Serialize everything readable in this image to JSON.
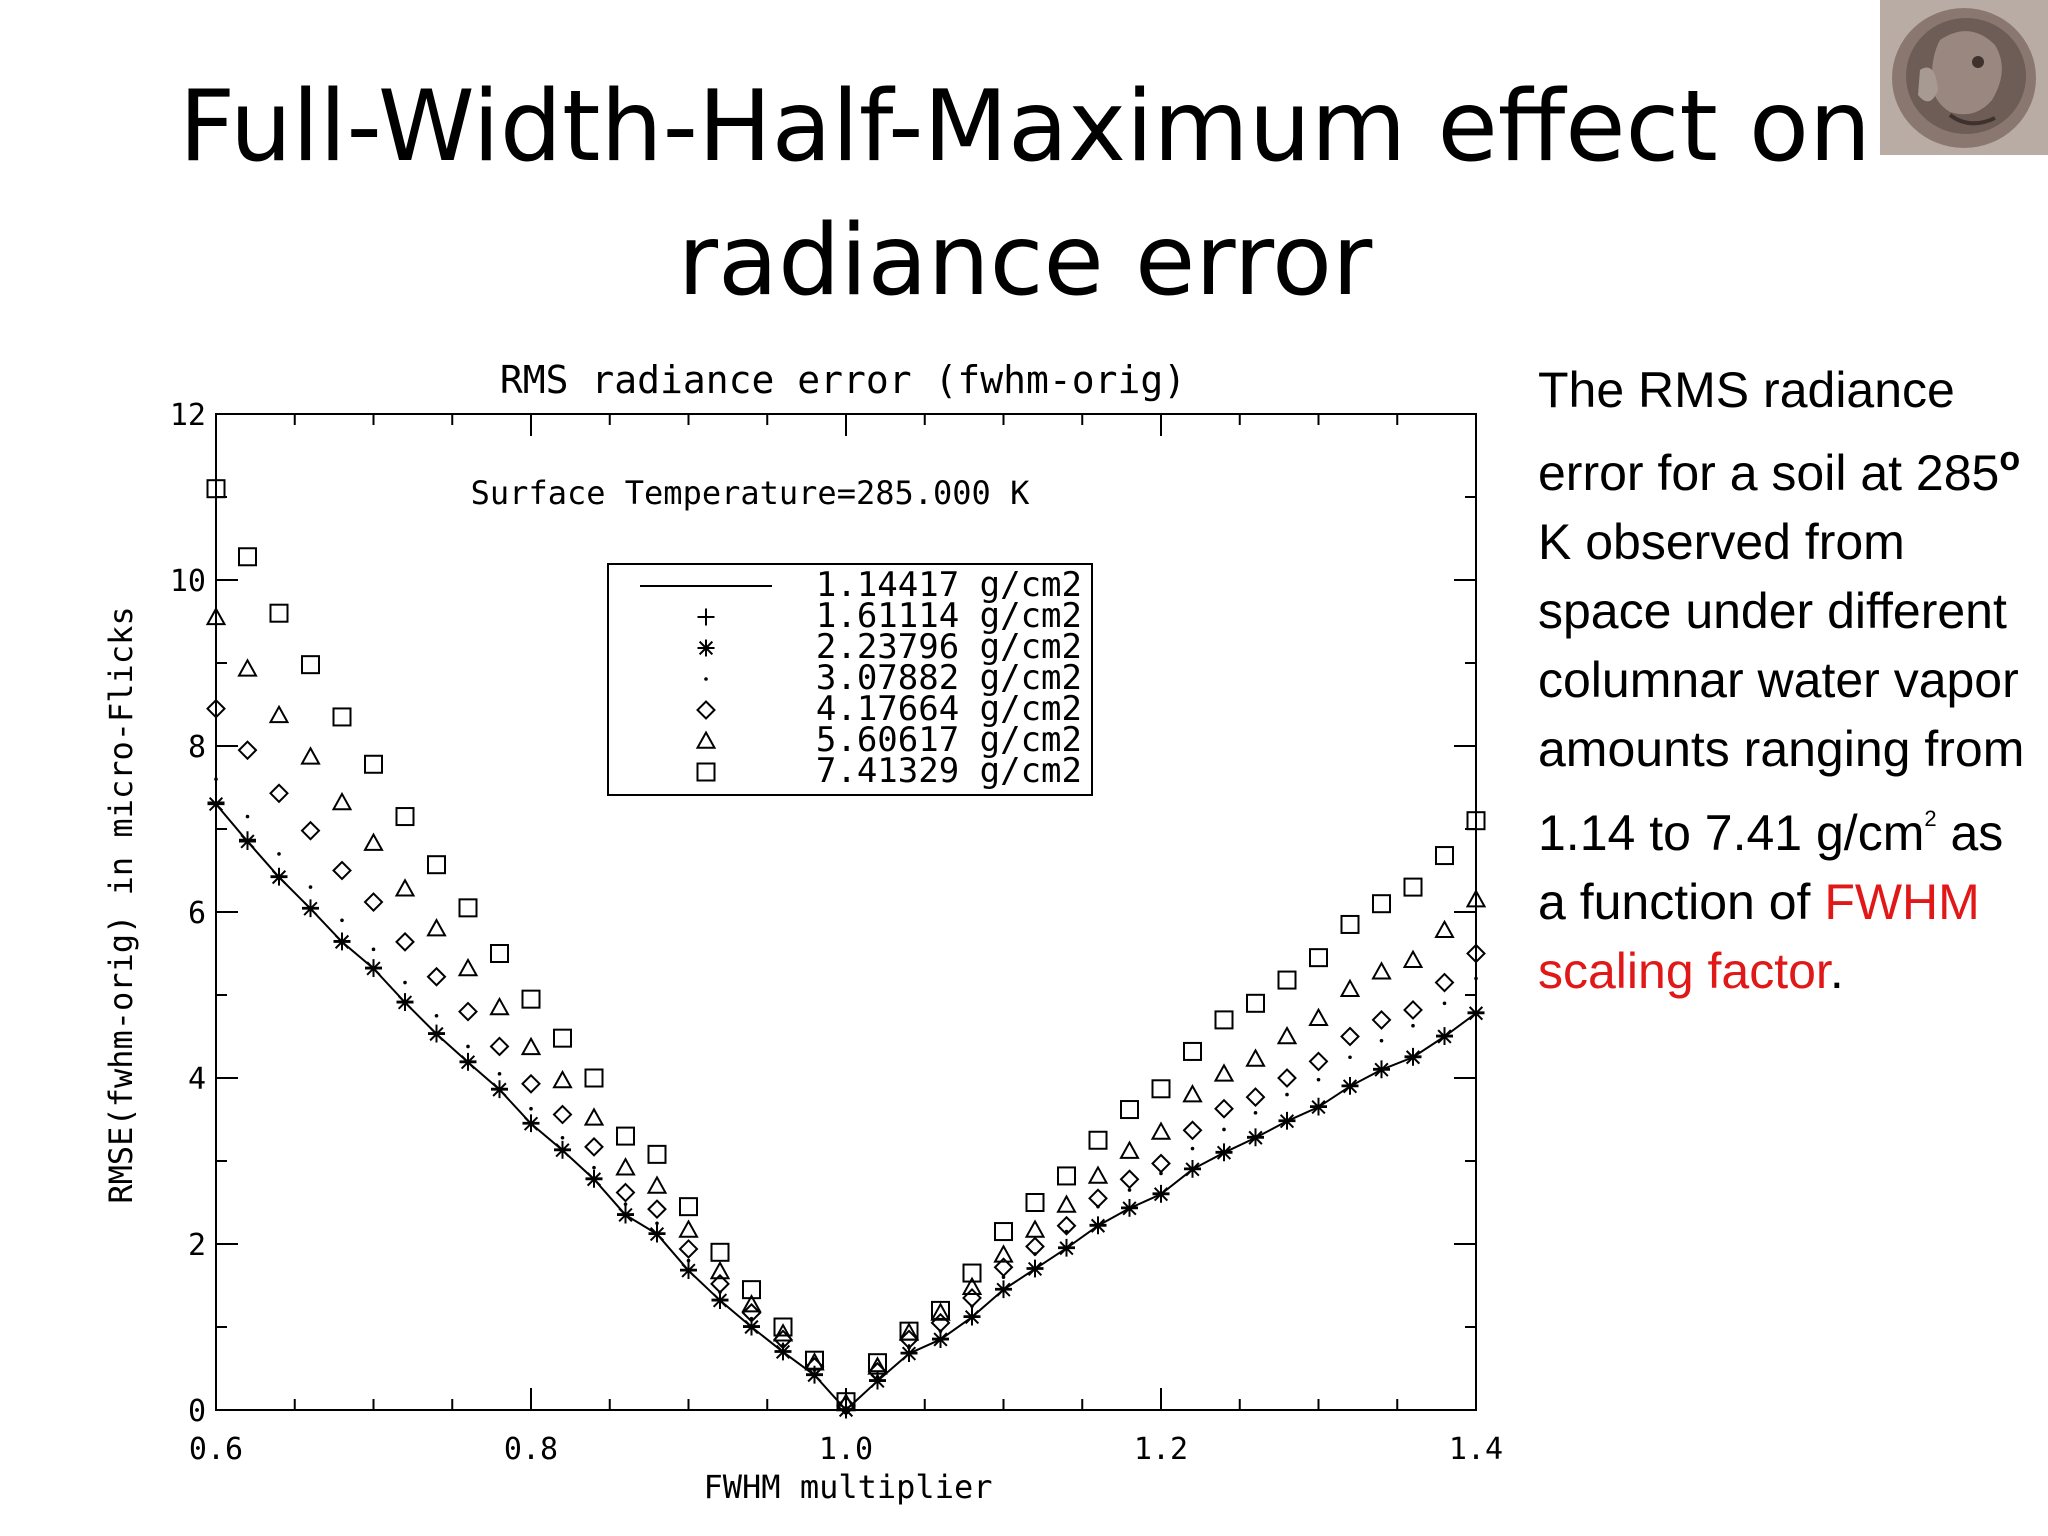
{
  "slide": {
    "title_line1": "Full-Width-Half-Maximum effect on",
    "title_line2": "radiance error"
  },
  "sidebar": {
    "p1": "The RMS radiance error for a soil at 285",
    "sup_o": "o",
    "p2": " K observed from space under different columnar water vapor amounts ranging from 1.14 to 7.41 g/cm",
    "sup_2": "2",
    "p3": " as a function of ",
    "highlight": "FWHM scaling factor",
    "p4": ".",
    "highlight_color": "#e01818"
  },
  "coin_image": {
    "icon": "ancient-coin-image"
  },
  "chart_data": {
    "type": "scatter",
    "title": "RMS radiance error (fwhm-orig)",
    "annotation": "Surface Temperature=285.000 K",
    "xlabel": "FWHM multiplier",
    "ylabel": "RMSE(fwhm-orig) in micro-Flicks",
    "xlim": [
      0.6,
      1.4
    ],
    "ylim": [
      0,
      12
    ],
    "x_ticks": [
      "0.6",
      "0.8",
      "1.0",
      "1.2",
      "1.4"
    ],
    "x_tick_values": [
      0.6,
      0.8,
      1.0,
      1.2,
      1.4
    ],
    "y_ticks": [
      "0",
      "2",
      "4",
      "6",
      "8",
      "10",
      "12"
    ],
    "y_tick_values": [
      0,
      2,
      4,
      6,
      8,
      10,
      12
    ],
    "grid": false,
    "legend_position": "top-center",
    "x": [
      0.6,
      0.62,
      0.64,
      0.66,
      0.68,
      0.7,
      0.72,
      0.74,
      0.76,
      0.78,
      0.8,
      0.82,
      0.84,
      0.86,
      0.88,
      0.9,
      0.92,
      0.94,
      0.96,
      0.98,
      1.0,
      1.02,
      1.04,
      1.06,
      1.08,
      1.1,
      1.12,
      1.14,
      1.16,
      1.18,
      1.2,
      1.22,
      1.24,
      1.26,
      1.28,
      1.3,
      1.32,
      1.34,
      1.36,
      1.38,
      1.4
    ],
    "series": [
      {
        "name": "1.14417 g/cm2",
        "marker": "line",
        "values": [
          7.3,
          6.85,
          6.42,
          6.04,
          5.64,
          5.32,
          4.91,
          4.53,
          4.19,
          3.86,
          3.45,
          3.13,
          2.78,
          2.35,
          2.12,
          1.68,
          1.32,
          1.0,
          0.7,
          0.42,
          0.0,
          0.35,
          0.68,
          0.85,
          1.12,
          1.45,
          1.7,
          1.95,
          2.22,
          2.43,
          2.6,
          2.9,
          3.1,
          3.28,
          3.48,
          3.65,
          3.9,
          4.1,
          4.25,
          4.5,
          4.78
        ]
      },
      {
        "name": "1.61114 g/cm2",
        "marker": "plus",
        "values": [
          7.32,
          6.87,
          6.43,
          6.05,
          5.65,
          5.33,
          4.92,
          4.54,
          4.2,
          3.87,
          3.46,
          3.14,
          2.79,
          2.36,
          2.13,
          1.69,
          1.33,
          1.01,
          0.71,
          0.43,
          0.01,
          0.36,
          0.69,
          0.86,
          1.13,
          1.46,
          1.71,
          1.96,
          2.23,
          2.44,
          2.61,
          2.91,
          3.11,
          3.29,
          3.49,
          3.66,
          3.91,
          4.11,
          4.26,
          4.51,
          4.79
        ]
      },
      {
        "name": "2.23796 g/cm2",
        "marker": "star",
        "values": [
          7.3,
          6.85,
          6.42,
          6.04,
          5.64,
          5.32,
          4.91,
          4.53,
          4.19,
          3.86,
          3.45,
          3.13,
          2.78,
          2.35,
          2.12,
          1.68,
          1.32,
          1.0,
          0.7,
          0.42,
          0.0,
          0.35,
          0.68,
          0.85,
          1.12,
          1.45,
          1.7,
          1.95,
          2.22,
          2.43,
          2.6,
          2.9,
          3.1,
          3.28,
          3.48,
          3.65,
          3.9,
          4.1,
          4.25,
          4.5,
          4.78
        ]
      },
      {
        "name": "3.07882 g/cm2",
        "marker": "dot",
        "values": [
          7.6,
          7.15,
          6.7,
          6.3,
          5.9,
          5.55,
          5.15,
          4.75,
          4.38,
          4.05,
          3.63,
          3.28,
          2.92,
          2.48,
          2.25,
          1.8,
          1.42,
          1.1,
          0.78,
          0.48,
          0.03,
          0.4,
          0.75,
          0.95,
          1.25,
          1.6,
          1.88,
          2.15,
          2.45,
          2.65,
          2.85,
          3.15,
          3.38,
          3.58,
          3.8,
          3.98,
          4.25,
          4.45,
          4.63,
          4.9,
          5.2
        ]
      },
      {
        "name": "4.17664 g/cm2",
        "marker": "diamond",
        "values": [
          8.45,
          7.95,
          7.43,
          6.98,
          6.5,
          6.12,
          5.64,
          5.22,
          4.8,
          4.38,
          3.93,
          3.56,
          3.17,
          2.62,
          2.42,
          1.94,
          1.52,
          1.17,
          0.85,
          0.52,
          0.05,
          0.46,
          0.85,
          1.05,
          1.35,
          1.72,
          1.97,
          2.22,
          2.55,
          2.78,
          2.97,
          3.37,
          3.63,
          3.77,
          4.0,
          4.2,
          4.5,
          4.7,
          4.82,
          5.15,
          5.5
        ]
      },
      {
        "name": "5.60617 g/cm2",
        "marker": "triangle",
        "values": [
          9.55,
          8.93,
          8.37,
          7.87,
          7.32,
          6.83,
          6.28,
          5.8,
          5.32,
          4.85,
          4.37,
          3.97,
          3.52,
          2.92,
          2.7,
          2.17,
          1.67,
          1.27,
          0.92,
          0.57,
          0.08,
          0.52,
          0.93,
          1.17,
          1.48,
          1.87,
          2.17,
          2.47,
          2.82,
          3.12,
          3.35,
          3.8,
          4.05,
          4.23,
          4.5,
          4.72,
          5.07,
          5.28,
          5.42,
          5.78,
          6.15
        ]
      },
      {
        "name": "7.41329 g/cm2",
        "marker": "square",
        "values": [
          11.1,
          10.28,
          9.6,
          8.98,
          8.35,
          7.78,
          7.15,
          6.57,
          6.05,
          5.5,
          4.95,
          4.48,
          4.0,
          3.3,
          3.08,
          2.45,
          1.9,
          1.45,
          1.0,
          0.6,
          0.1,
          0.57,
          0.95,
          1.2,
          1.65,
          2.15,
          2.5,
          2.82,
          3.25,
          3.62,
          3.87,
          4.32,
          4.7,
          4.9,
          5.18,
          5.45,
          5.85,
          6.1,
          6.3,
          6.68,
          7.1
        ]
      }
    ]
  }
}
